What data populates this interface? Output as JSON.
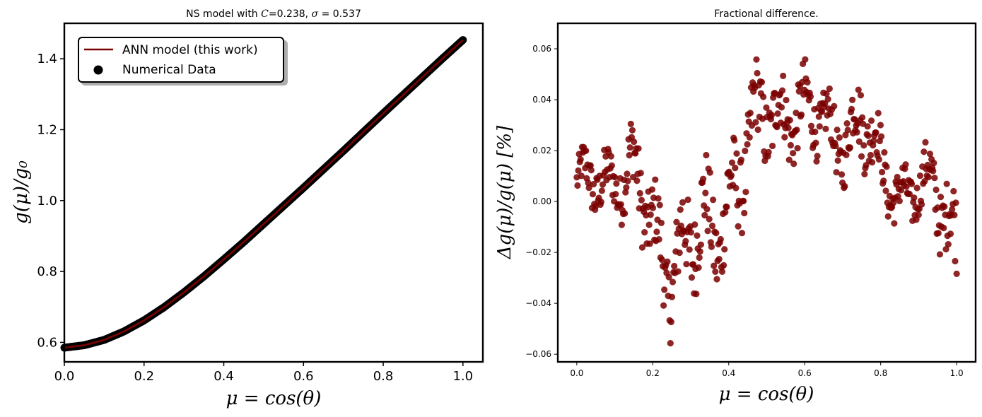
{
  "chart_data": [
    {
      "type": "line",
      "title_prefix": "NS model with ",
      "title_var1": "C",
      "title_mid": "=0.238, ",
      "title_var2": "σ",
      "title_suffix": " = 0.537",
      "xlabel": "μ = cos(θ)",
      "ylabel": "g(μ)/g₀",
      "xlim": [
        0.0,
        1.05
      ],
      "ylim": [
        0.545,
        1.5
      ],
      "xticks": [
        "0.0",
        "0.2",
        "0.4",
        "0.6",
        "0.8",
        "1.0"
      ],
      "yticks": [
        "0.6",
        "0.8",
        "1.0",
        "1.2",
        "1.4"
      ],
      "legend_position": "upper-left",
      "series": [
        {
          "name": "ANN model (this work)",
          "kind": "line",
          "color": "#7a0000"
        },
        {
          "name": "Numerical Data",
          "kind": "scatter",
          "color": "#000000"
        }
      ],
      "curve": {
        "x": [
          0.0,
          0.05,
          0.1,
          0.15,
          0.2,
          0.25,
          0.3,
          0.35,
          0.4,
          0.45,
          0.5,
          0.55,
          0.6,
          0.65,
          0.7,
          0.75,
          0.8,
          0.85,
          0.9,
          0.95,
          1.0
        ],
        "y": [
          0.585,
          0.592,
          0.607,
          0.631,
          0.662,
          0.699,
          0.741,
          0.786,
          0.834,
          0.883,
          0.934,
          0.985,
          1.036,
          1.088,
          1.14,
          1.193,
          1.246,
          1.298,
          1.35,
          1.402,
          1.453
        ]
      },
      "n_points": 500
    },
    {
      "type": "scatter",
      "title": "Fractional difference.",
      "xlabel": "μ = cos(θ)",
      "ylabel": "Δg(μ)/g(μ)  [%]",
      "xlim": [
        -0.05,
        1.05
      ],
      "ylim": [
        -0.063,
        0.07
      ],
      "xticks": [
        "0.0",
        "0.2",
        "0.4",
        "0.6",
        "0.8",
        "1.0"
      ],
      "yticks": [
        "−0.06",
        "−0.04",
        "−0.02",
        "0.00",
        "0.02",
        "0.04",
        "0.06"
      ],
      "color": "#7a0000",
      "envelope": {
        "x": [
          0.0,
          0.05,
          0.1,
          0.15,
          0.2,
          0.25,
          0.3,
          0.35,
          0.4,
          0.45,
          0.5,
          0.55,
          0.6,
          0.65,
          0.7,
          0.75,
          0.8,
          0.85,
          0.9,
          0.95,
          1.0
        ],
        "center": [
          0.004,
          0.01,
          0.012,
          0.005,
          -0.01,
          -0.022,
          -0.02,
          -0.012,
          0.005,
          0.015,
          0.035,
          0.04,
          0.03,
          0.03,
          0.028,
          0.03,
          0.012,
          0.006,
          0.004,
          0.0,
          -0.01
        ],
        "spread": [
          0.012,
          0.018,
          0.016,
          0.025,
          0.025,
          0.028,
          0.032,
          0.03,
          0.028,
          0.028,
          0.026,
          0.022,
          0.022,
          0.018,
          0.02,
          0.024,
          0.018,
          0.015,
          0.015,
          0.022,
          0.028
        ]
      },
      "n_points": 500
    }
  ]
}
